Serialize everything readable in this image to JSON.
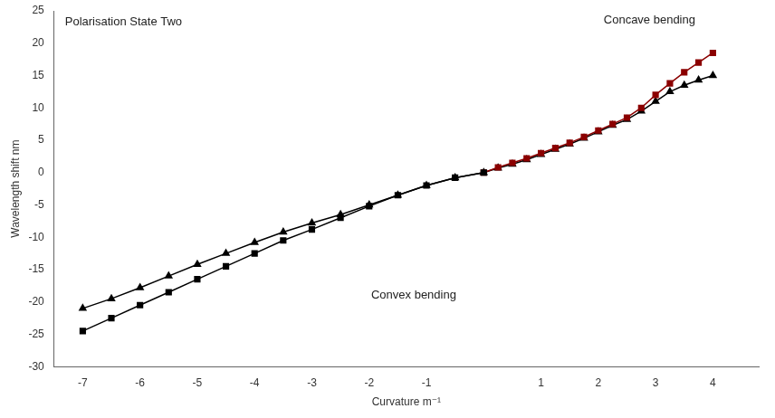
{
  "chart_data": {
    "type": "line",
    "xlabel": "Curvature m⁻¹",
    "ylabel": "Wavelength shift nm",
    "annotations": [
      "Polarisation State Two",
      "Concave bending",
      "Convex bending"
    ],
    "series": [
      {
        "color": "#000000",
        "marker": "square",
        "line_style": "solid",
        "x": [
          -7,
          -6.5,
          -6,
          -5.5,
          -5,
          -4.5,
          -4,
          -3.5,
          -3,
          -2.5,
          -2,
          -1.5,
          -1,
          -0.5,
          0
        ],
        "values": [
          -24.5,
          -22.5,
          -20.5,
          -18.5,
          -16.5,
          -14.5,
          -12.5,
          -10.5,
          -8.8,
          -7.0,
          -5.2,
          -3.5,
          -2.0,
          -0.8,
          0
        ]
      },
      {
        "color": "#8B0000",
        "marker": "square",
        "line_style": "solid",
        "x": [
          0,
          0.25,
          0.5,
          0.75,
          1,
          1.25,
          1.5,
          1.75,
          2,
          2.25,
          2.5,
          2.75,
          3,
          3.25,
          3.5,
          3.75,
          4
        ],
        "values": [
          0,
          0.8,
          1.5,
          2.2,
          3.0,
          3.8,
          4.6,
          5.5,
          6.5,
          7.5,
          8.5,
          10.0,
          12.0,
          13.8,
          15.5,
          17.0,
          18.5
        ]
      },
      {
        "color": "#000000",
        "marker": "triangle",
        "line_style": "solid",
        "x": [
          -7,
          -6.5,
          -6,
          -5.5,
          -5,
          -4.5,
          -4,
          -3.5,
          -3,
          -2.5,
          -2,
          -1.5,
          -1,
          -0.5,
          0,
          0.25,
          0.5,
          0.75,
          1,
          1.25,
          1.5,
          1.75,
          2,
          2.25,
          2.5,
          2.75,
          3,
          3.25,
          3.5,
          3.75,
          4
        ],
        "values": [
          -21.0,
          -19.5,
          -17.8,
          -16.0,
          -14.2,
          -12.5,
          -10.8,
          -9.2,
          -7.8,
          -6.5,
          -5.0,
          -3.5,
          -2.0,
          -0.8,
          0,
          0.7,
          1.3,
          2.0,
          2.8,
          3.6,
          4.4,
          5.3,
          6.3,
          7.3,
          8.2,
          9.5,
          11.0,
          12.5,
          13.5,
          14.3,
          15.0
        ]
      }
    ],
    "xlim": [
      -7.5,
      4.8
    ],
    "ylim": [
      -30,
      25
    ],
    "xticks": [
      -7,
      -6,
      -5,
      -4,
      -3,
      -2,
      -1,
      1,
      2,
      3,
      4
    ],
    "yticks": [
      -30,
      -25,
      -20,
      -15,
      -10,
      -5,
      0,
      5,
      10,
      15,
      20,
      25
    ],
    "grid": false
  }
}
